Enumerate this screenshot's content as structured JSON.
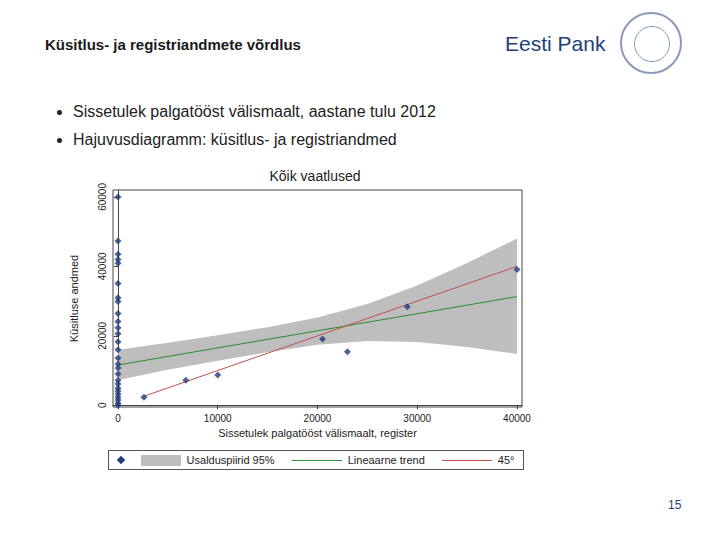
{
  "header": {
    "title": "Küsitlus- ja registriandmete võrdlus",
    "brand": "Eesti Pank"
  },
  "bullets": [
    "Sissetulek palgatööst välismaalt, aastane tulu 2012",
    "Hajuvusdiagramm: küsitlus- ja registriandmed"
  ],
  "page_number": 15,
  "chart_data": {
    "type": "scatter",
    "title": "Kõik vaatlused",
    "x_label": "Sissetulek palgatööst välismaalt, register",
    "y_label": "Küsitluse andmed",
    "xlim": [
      -500,
      40500
    ],
    "xticks": [
      0,
      10000,
      20000,
      30000,
      40000
    ],
    "ylim": [
      -500,
      62000
    ],
    "yticks": [
      0,
      20000,
      40000,
      60000
    ],
    "grid": false,
    "legend": "bottom",
    "series": [
      {
        "type": "band",
        "name": "Usalduspiirid 95%",
        "color": "#bebebe",
        "x": [
          0,
          5000,
          10000,
          15000,
          20000,
          25000,
          30000,
          35000,
          40000
        ],
        "lower": [
          7300,
          10200,
          12800,
          15300,
          17400,
          18500,
          18200,
          16800,
          14800
        ],
        "upper": [
          16000,
          18000,
          20200,
          22500,
          25300,
          29200,
          34500,
          41000,
          48000
        ]
      },
      {
        "type": "line",
        "name": "Lineaarne trend",
        "color": "#2e8b2e",
        "line_style": "solid",
        "x": [
          0,
          40000
        ],
        "values": [
          11600,
          31300
        ]
      },
      {
        "type": "line",
        "name": "45°",
        "color": "#c0504d",
        "line_style": "solid",
        "x": [
          2600,
          40000
        ],
        "values": [
          2600,
          40000
        ]
      },
      {
        "type": "scatter",
        "marker": "diamond",
        "color": "#1f3d7a",
        "x": [
          0,
          0,
          0,
          0,
          0,
          0,
          0,
          0,
          0,
          0,
          0,
          0,
          0,
          0,
          0,
          0,
          0,
          0,
          0,
          0,
          0,
          0,
          0,
          0,
          0,
          0,
          0,
          2600,
          6800,
          10000,
          20500,
          23000,
          29000,
          40000
        ],
        "values": [
          60000,
          47300,
          43500,
          42000,
          40900,
          35100,
          31000,
          29900,
          26400,
          24100,
          22300,
          20600,
          18300,
          16000,
          13600,
          11900,
          10700,
          9000,
          7200,
          6100,
          4900,
          4100,
          3200,
          2300,
          1500,
          600,
          0,
          2300,
          7200,
          8700,
          19100,
          15400,
          28400,
          39100
        ]
      }
    ]
  }
}
